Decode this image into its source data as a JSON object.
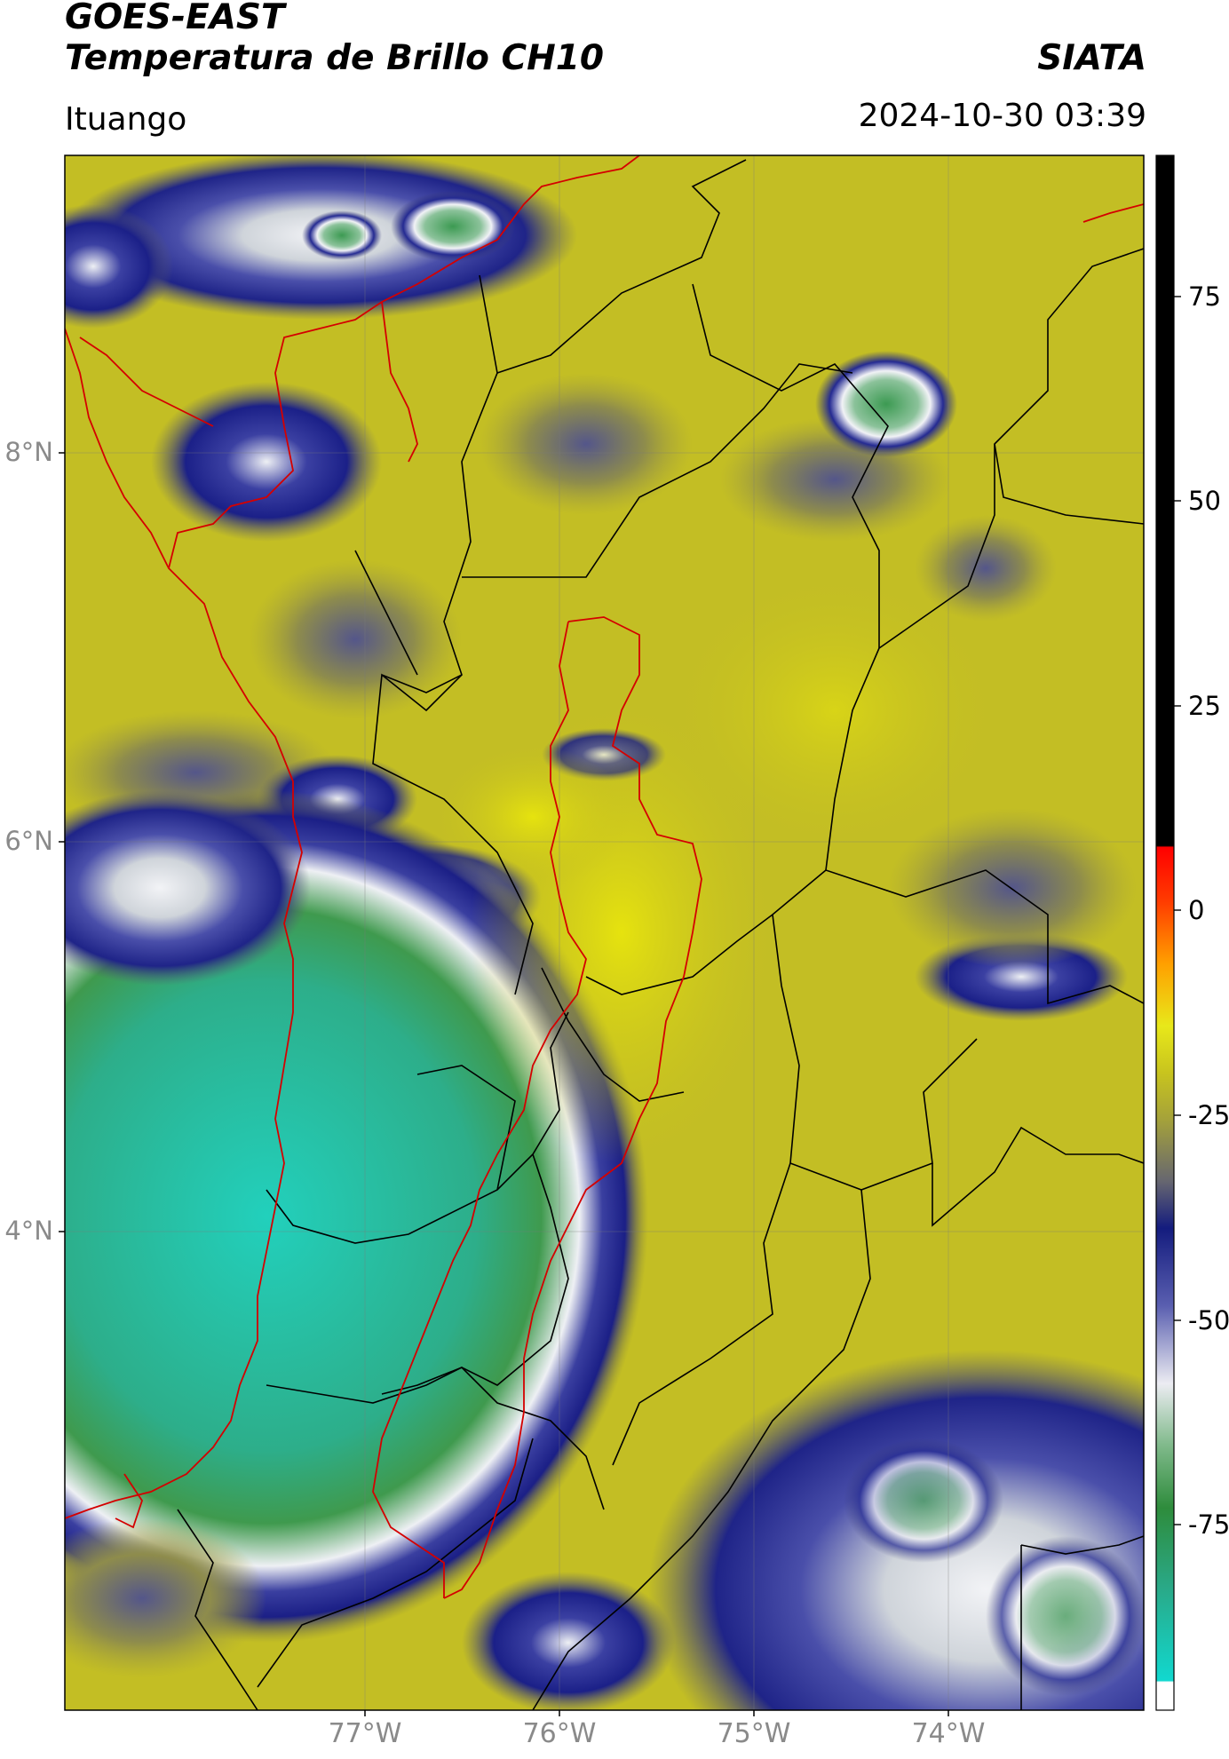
{
  "header": {
    "satellite": "GOES-EAST",
    "product": "Temperatura de Brillo CH10",
    "brand": "SIATA",
    "region": "Ituango",
    "datetime": "2024-10-30 03:39"
  },
  "map": {
    "lat_labels": [
      "8°N",
      "6°N",
      "4°N"
    ],
    "lon_labels": [
      "77°W",
      "76°W",
      "75°W",
      "74°W"
    ],
    "background_colors": {
      "warm_yellow": "#c8c21e",
      "bright_yellow": "#e2e012",
      "olive": "#a7a43a",
      "cold_blue": "#1d2388",
      "cold_white": "#eef0f4",
      "cold_green": "#3fa356",
      "cold_cyan": "#22c7b4"
    },
    "boundary_colors": {
      "department": "#cc0000",
      "municipal": "#000000"
    }
  },
  "colorbar": {
    "ticks": [
      "75",
      "50",
      "25",
      "0",
      "-25",
      "-50",
      "-75"
    ],
    "colors": [
      "#000000",
      "#ff0000",
      "#ff8c00",
      "#e8e81a",
      "#a5a23a",
      "#141c7e",
      "#ececf2",
      "#2e8c3c",
      "#11d8cf",
      "#ffffff"
    ]
  }
}
